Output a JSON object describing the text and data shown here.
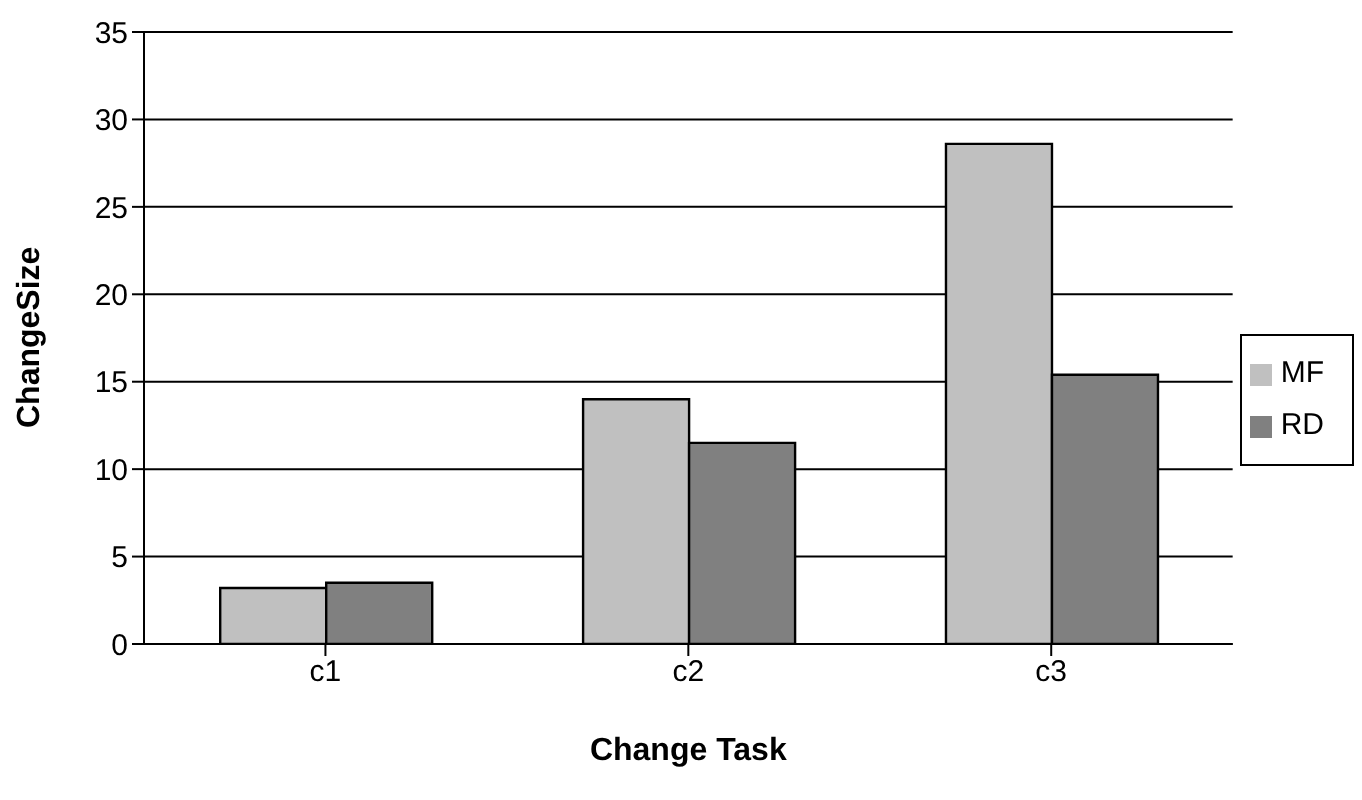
{
  "chart_data": {
    "type": "bar",
    "xlabel": "Change Task",
    "ylabel": "ChangeSize",
    "categories": [
      "c1",
      "c2",
      "c3"
    ],
    "series": [
      {
        "name": "MF",
        "color": "#c0c0c0",
        "values": [
          3.2,
          14.0,
          28.6
        ]
      },
      {
        "name": "RD",
        "color": "#808080",
        "values": [
          3.5,
          11.5,
          15.4
        ]
      }
    ],
    "ylim": [
      0,
      35
    ],
    "yticks": [
      0,
      5,
      10,
      15,
      20,
      25,
      30,
      35
    ],
    "grid": "y",
    "legend": "right"
  }
}
